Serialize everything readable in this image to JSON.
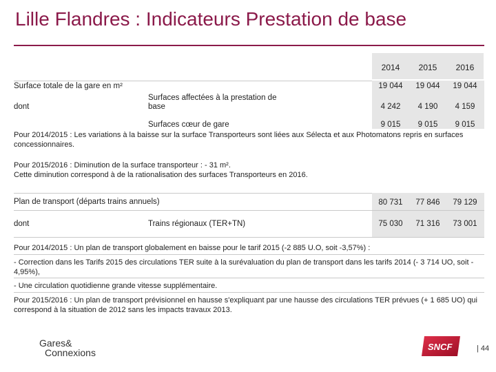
{
  "title": "Lille Flandres : Indicateurs Prestation de base",
  "table1": {
    "years": [
      "2014",
      "2015",
      "2016"
    ],
    "row_total": {
      "label": "Surface totale de la gare en m²",
      "values": [
        "19 044",
        "19 044",
        "19 044"
      ]
    },
    "dont_label": "dont",
    "row_affectees": {
      "label": "Surfaces affectées à la prestation de base",
      "values": [
        "4 242",
        "4 190",
        "4 159"
      ]
    },
    "row_coeur": {
      "label": "Surfaces cœur de gare",
      "values": [
        "9 015",
        "9 015",
        "9 015"
      ]
    },
    "note_2014": "Pour 2014/2015 : Les variations à la baisse sur la surface Transporteurs sont liées aux Sélecta et aux Photomatons repris en surfaces concessionnaires.",
    "note_2015_a": "Pour 2015/2016 : Diminution de la surface transporteur : - 31 m².",
    "note_2015_b": "Cette diminution correspond à de la rationalisation des surfaces Transporteurs en 2016."
  },
  "table2": {
    "row_plan": {
      "label": "Plan de transport (départs trains annuels)",
      "values": [
        "80 731",
        "77 846",
        "79 129"
      ]
    },
    "dont_label": "dont",
    "row_ter": {
      "label": "Trains régionaux (TER+TN)",
      "values": [
        "75 030",
        "71 316",
        "73 001"
      ]
    },
    "note_a": "Pour 2014/2015 : Un plan de transport globalement en baisse pour le tarif 2015 (-2 885 U.O, soit -3,57%) :",
    "note_b": "- Correction dans les Tarifs 2015 des circulations TER suite à la surévaluation du plan de transport dans les tarifs 2014 (- 3 714 UO, soit - 4,95%),",
    "note_c": "- Une circulation quotidienne grande vitesse supplémentaire.",
    "note_d": "Pour 2015/2016 : Un plan de transport prévisionnel en hausse s'expliquant par une hausse des circulations TER prévues (+ 1 685 UO) qui correspond à la situation de 2012 sans les impacts travaux 2013."
  },
  "footer": {
    "logo_left_line1": "Gares&",
    "logo_left_line2": "Connexions",
    "logo_right": "SNCF",
    "page": "| 44"
  },
  "colors": {
    "accent": "#8b1a4a",
    "sncf_red": "#c8102e",
    "band_grey": "#e6e6e6"
  },
  "icons": [
    "gares-connexions-logo",
    "sncf-logo"
  ]
}
